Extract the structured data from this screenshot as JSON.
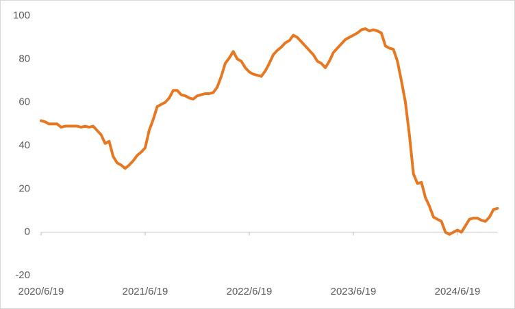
{
  "chart_data": {
    "type": "line",
    "categories": [
      "2020/6/19",
      null,
      null,
      null,
      null,
      null,
      null,
      null,
      null,
      null,
      null,
      null,
      null,
      null,
      null,
      null,
      null,
      null,
      null,
      null,
      null,
      null,
      null,
      null,
      null,
      null,
      "2021/6/19",
      null,
      null,
      null,
      null,
      null,
      null,
      null,
      null,
      null,
      null,
      null,
      null,
      null,
      null,
      null,
      null,
      null,
      null,
      null,
      null,
      null,
      null,
      null,
      null,
      null,
      "2022/6/19",
      null,
      null,
      null,
      null,
      null,
      null,
      null,
      null,
      null,
      null,
      null,
      null,
      null,
      null,
      null,
      null,
      null,
      null,
      null,
      null,
      null,
      null,
      null,
      null,
      null,
      "2023/6/19",
      null,
      null,
      null,
      null,
      null,
      null,
      null,
      null,
      null,
      null,
      null,
      null,
      null,
      null,
      null,
      null,
      null,
      null,
      null,
      null,
      null,
      null,
      null,
      null,
      null,
      "2024/6/19",
      null,
      null,
      null,
      null,
      null,
      null,
      null,
      null,
      null,
      null
    ],
    "series": [
      {
        "color": "#e87722",
        "values": [
          51.5,
          51,
          50,
          50,
          50,
          48.5,
          49,
          49,
          49,
          49,
          48.5,
          49,
          48.5,
          49,
          47,
          45,
          41,
          42,
          35,
          32,
          31,
          29.5,
          31,
          33,
          35.5,
          37,
          39,
          47,
          52,
          58,
          59,
          60,
          62,
          65.5,
          65.5,
          63.5,
          63,
          62,
          61.5,
          63,
          63.5,
          64,
          64,
          64.5,
          67,
          72,
          78,
          80.5,
          83.5,
          80,
          79,
          76,
          74,
          73,
          72.5,
          72,
          74.5,
          78,
          82,
          84,
          85.5,
          87.5,
          88.5,
          91,
          90,
          88,
          86,
          84,
          82,
          79,
          78,
          76,
          79,
          83,
          85,
          87,
          89,
          90,
          91,
          92,
          93.5,
          94,
          93,
          93.5,
          93,
          92,
          86,
          85,
          84.5,
          79,
          70,
          60,
          45,
          27,
          22.5,
          23,
          16,
          12,
          7,
          6,
          5,
          0,
          -1,
          0,
          1,
          0,
          3,
          6,
          6.5,
          6.5,
          5.5,
          5,
          7,
          10.5,
          11
        ]
      }
    ],
    "ylim": [
      -20,
      100
    ],
    "yticks": [
      -20,
      0,
      20,
      40,
      60,
      80,
      100
    ],
    "grid": false
  }
}
